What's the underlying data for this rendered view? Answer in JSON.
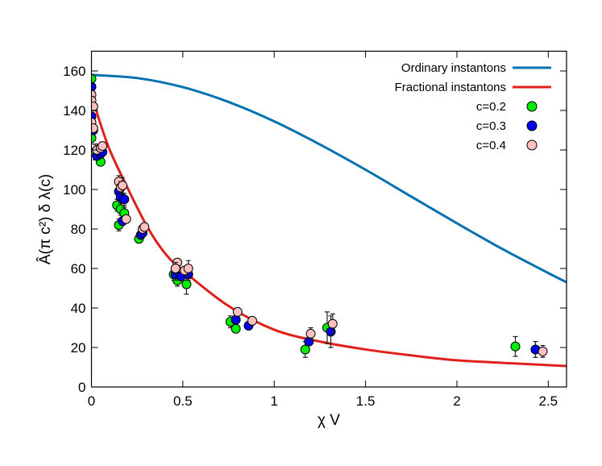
{
  "chart_data": {
    "type": "scatter",
    "xlabel": "χ V",
    "ylabel": "Â(π c²)  δ λ(c)",
    "xlim": [
      0,
      2.6
    ],
    "ylim": [
      0,
      170
    ],
    "xticks": [
      0,
      0.5,
      1,
      1.5,
      2,
      2.5
    ],
    "xtick_labels": [
      "0",
      "0.5",
      "1",
      "1.5",
      "2",
      "2.5"
    ],
    "yticks": [
      0,
      20,
      40,
      60,
      80,
      100,
      120,
      140,
      160
    ],
    "ytick_labels": [
      "0",
      "20",
      "40",
      "60",
      "80",
      "100",
      "120",
      "140",
      "160"
    ],
    "legend_position": "top-right",
    "grid": false,
    "curves": [
      {
        "name": "Ordinary instantons",
        "color": "#0072b2",
        "x": [
          0,
          0.25,
          0.5,
          0.75,
          1,
          1.25,
          1.5,
          1.75,
          2,
          2.25,
          2.5,
          2.6
        ],
        "y": [
          158,
          156.4,
          151.8,
          144.3,
          134.5,
          122.8,
          110,
          96.4,
          82.9,
          69.8,
          57.7,
          53
        ]
      },
      {
        "name": "Fractional instantons",
        "color": "#e0201a",
        "x": [
          0,
          0.02,
          0.05,
          0.1,
          0.17,
          0.3,
          0.4,
          0.5,
          0.75,
          1,
          1.25,
          1.5,
          1.75,
          2,
          2.3,
          2.6
        ],
        "y": [
          150,
          142,
          133,
          120,
          106,
          82,
          68,
          59,
          41,
          29,
          23,
          19,
          16,
          13.5,
          12,
          10.6
        ]
      }
    ],
    "series": [
      {
        "name": "c=0.2",
        "color": "#00ee00",
        "points": [
          [
            0,
            156,
            2
          ],
          [
            0,
            126,
            3
          ],
          [
            0.02,
            119,
            4
          ],
          [
            0.05,
            114,
            2
          ],
          [
            0.14,
            92,
            3
          ],
          [
            0.15,
            82,
            3
          ],
          [
            0.16,
            90,
            3
          ],
          [
            0.18,
            88,
            3
          ],
          [
            0.26,
            75,
            2
          ],
          [
            0.45,
            57,
            3
          ],
          [
            0.47,
            54,
            3
          ],
          [
            0.52,
            52,
            5
          ],
          [
            0.76,
            33,
            3
          ],
          [
            0.79,
            29.5,
            2
          ],
          [
            1.17,
            19,
            4
          ],
          [
            1.29,
            30,
            8
          ],
          [
            2.32,
            20.5,
            5
          ]
        ]
      },
      {
        "name": "c=0.3",
        "color": "#0000ee",
        "points": [
          [
            0,
            152,
            2
          ],
          [
            0,
            137,
            2
          ],
          [
            0.01,
            130,
            2
          ],
          [
            0.03,
            117,
            2
          ],
          [
            0.05,
            118,
            2
          ],
          [
            0.06,
            119,
            2
          ],
          [
            0.15,
            99,
            3
          ],
          [
            0.16,
            96,
            3
          ],
          [
            0.18,
            95,
            3
          ],
          [
            0.17,
            84,
            2
          ],
          [
            0.27,
            77,
            2
          ],
          [
            0.28,
            78,
            2
          ],
          [
            0.46,
            57,
            3
          ],
          [
            0.49,
            56,
            2
          ],
          [
            0.53,
            57,
            3
          ],
          [
            0.79,
            34,
            2
          ],
          [
            0.86,
            31,
            2
          ],
          [
            1.19,
            23,
            2
          ],
          [
            1.31,
            28,
            8
          ],
          [
            2.43,
            19,
            4
          ]
        ]
      },
      {
        "name": "c=0.4",
        "color": "#ffc0c0",
        "points": [
          [
            0,
            148,
            2
          ],
          [
            0,
            145,
            2
          ],
          [
            0.01,
            142,
            2
          ],
          [
            0,
            134,
            2
          ],
          [
            0.01,
            131,
            2
          ],
          [
            0.03,
            120,
            2
          ],
          [
            0.05,
            121,
            2
          ],
          [
            0.06,
            122,
            2
          ],
          [
            0.15,
            104,
            3
          ],
          [
            0.16,
            101,
            3
          ],
          [
            0.17,
            102,
            4
          ],
          [
            0.19,
            85,
            2
          ],
          [
            0.28,
            80,
            2
          ],
          [
            0.29,
            81,
            2
          ],
          [
            0.47,
            63,
            2
          ],
          [
            0.46,
            60,
            3
          ],
          [
            0.51,
            59,
            2
          ],
          [
            0.53,
            60,
            4
          ],
          [
            0.8,
            38,
            2
          ],
          [
            0.88,
            33.5,
            2
          ],
          [
            1.2,
            27,
            3
          ],
          [
            1.32,
            32,
            5
          ],
          [
            2.47,
            18,
            3
          ]
        ]
      }
    ]
  }
}
